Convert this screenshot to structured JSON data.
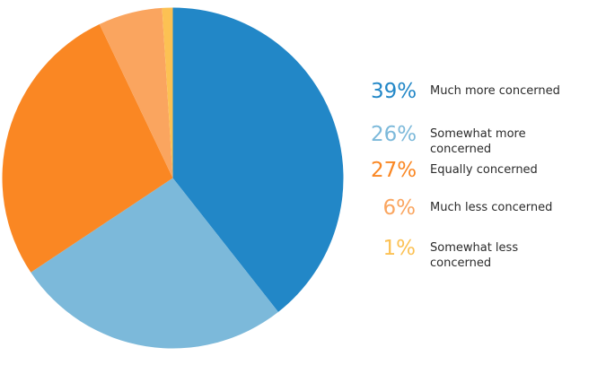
{
  "figure": {
    "background_color": "#ffffff",
    "label_text_color": "#2b2b2b"
  },
  "chart_data": {
    "type": "pie",
    "title": "",
    "start_angle": "12-oclock",
    "direction": "clockwise",
    "legend_position": "right",
    "unit": "%",
    "categories": [
      "Much more concerned",
      "Somewhat more concerned",
      "Equally concerned",
      "Much less concerned",
      "Somewhat less concerned"
    ],
    "values": [
      39,
      26,
      27,
      6,
      1
    ],
    "colors": [
      "#2287c7",
      "#7cb9da",
      "#fa8723",
      "#faa55f",
      "#fcc153"
    ],
    "legend": [
      {
        "percent": "39%",
        "label": "Much more concerned",
        "color": "#2287c7"
      },
      {
        "percent": "26%",
        "label": "Somewhat more concerned",
        "color": "#7cb9da"
      },
      {
        "percent": "27%",
        "label": "Equally concerned",
        "color": "#fa8723"
      },
      {
        "percent": "6%",
        "label": "Much less concerned",
        "color": "#faa55f"
      },
      {
        "percent": "1%",
        "label": "Somewhat less concerned",
        "color": "#fcc153"
      }
    ]
  }
}
